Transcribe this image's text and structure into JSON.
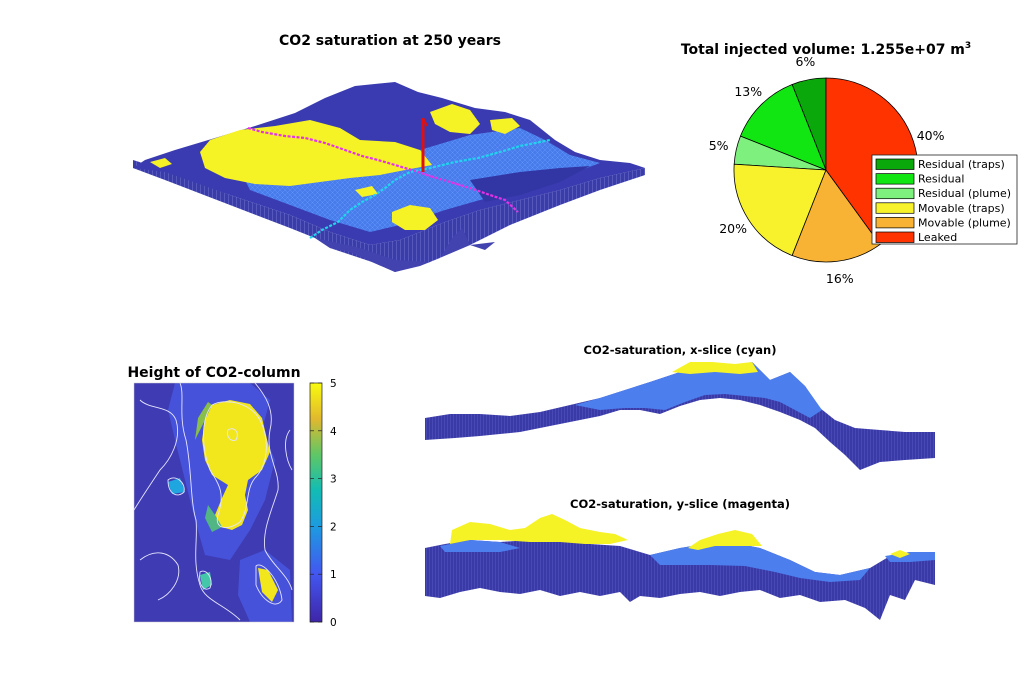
{
  "figure": {
    "surface_title": "CO2 saturation at 250 years",
    "column_title": "Height of CO2-column",
    "xslice_title": "CO2-saturation, x-slice (cyan)",
    "yslice_title": "CO2-saturation, y-slice (magenta)"
  },
  "colors": {
    "surface_base": "#3b3fae",
    "surface_mid": "#4a78e8",
    "surface_plume": "#f5f226",
    "x_slice_line": "#22d3ee",
    "y_slice_line": "#e632e6",
    "well": "#e01010"
  },
  "chart_data": [
    {
      "type": "pie",
      "title_main": "Total injected volume: 1.255e+07 m",
      "title_sup": "3",
      "slices": [
        {
          "name": "Residual (traps)",
          "value": 6,
          "label": "6%",
          "color": "#0aa80a"
        },
        {
          "name": "Residual",
          "value": 13,
          "label": "13%",
          "color": "#12e612"
        },
        {
          "name": "Residual (plume)",
          "value": 5,
          "label": "5%",
          "color": "#7ef07e"
        },
        {
          "name": "Movable (traps)",
          "value": 20,
          "label": "20%",
          "color": "#f7f22c"
        },
        {
          "name": "Movable (plume)",
          "value": 16,
          "label": "16%",
          "color": "#f8b234"
        },
        {
          "name": "Leaked",
          "value": 40,
          "label": "40%",
          "color": "#ff3300"
        }
      ],
      "legend_position": "right"
    },
    {
      "type": "heatmap",
      "colorbar": {
        "min": 0,
        "max": 5,
        "ticks": [
          "0",
          "1",
          "2",
          "3",
          "4",
          "5"
        ]
      }
    }
  ]
}
